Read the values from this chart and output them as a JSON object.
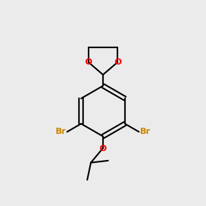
{
  "bg_color": "#ebebeb",
  "bond_color": "#000000",
  "o_color": "#ff0000",
  "br_color": "#cc8800",
  "line_width": 1.6,
  "figsize": [
    3.0,
    3.0
  ],
  "dpi": 100,
  "xlim": [
    0,
    10
  ],
  "ylim": [
    0,
    10
  ]
}
